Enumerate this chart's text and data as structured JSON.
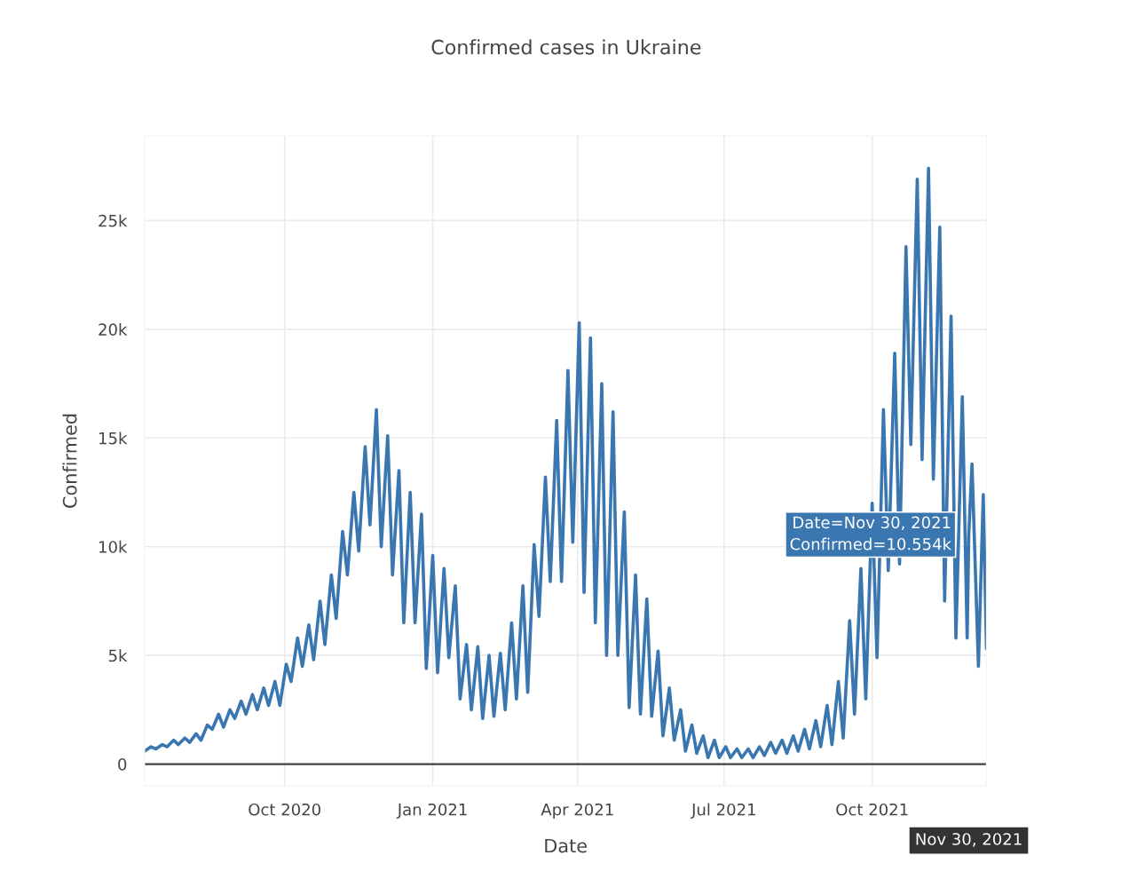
{
  "chart_data": {
    "type": "line",
    "title": "Confirmed cases in Ukraine",
    "xlabel": "Date",
    "ylabel": "Confirmed",
    "x": [
      "2020-07-06",
      "2020-07-10",
      "2020-07-13",
      "2020-07-17",
      "2020-07-20",
      "2020-07-24",
      "2020-07-27",
      "2020-07-31",
      "2020-08-03",
      "2020-08-07",
      "2020-08-10",
      "2020-08-14",
      "2020-08-17",
      "2020-08-21",
      "2020-08-24",
      "2020-08-28",
      "2020-08-31",
      "2020-09-04",
      "2020-09-07",
      "2020-09-11",
      "2020-09-14",
      "2020-09-18",
      "2020-09-21",
      "2020-09-25",
      "2020-09-28",
      "2020-10-02",
      "2020-10-05",
      "2020-10-09",
      "2020-10-12",
      "2020-10-16",
      "2020-10-19",
      "2020-10-23",
      "2020-10-26",
      "2020-10-30",
      "2020-11-02",
      "2020-11-06",
      "2020-11-09",
      "2020-11-13",
      "2020-11-16",
      "2020-11-20",
      "2020-11-23",
      "2020-11-27",
      "2020-11-30",
      "2020-12-04",
      "2020-12-07",
      "2020-12-11",
      "2020-12-14",
      "2020-12-18",
      "2020-12-21",
      "2020-12-25",
      "2020-12-28",
      "2021-01-01",
      "2021-01-04",
      "2021-01-08",
      "2021-01-11",
      "2021-01-15",
      "2021-01-18",
      "2021-01-22",
      "2021-01-25",
      "2021-01-29",
      "2021-02-01",
      "2021-02-05",
      "2021-02-08",
      "2021-02-12",
      "2021-02-15",
      "2021-02-19",
      "2021-02-22",
      "2021-02-26",
      "2021-03-01",
      "2021-03-05",
      "2021-03-08",
      "2021-03-12",
      "2021-03-15",
      "2021-03-19",
      "2021-03-22",
      "2021-03-26",
      "2021-03-29",
      "2021-04-02",
      "2021-04-05",
      "2021-04-09",
      "2021-04-12",
      "2021-04-16",
      "2021-04-19",
      "2021-04-23",
      "2021-04-26",
      "2021-04-30",
      "2021-05-03",
      "2021-05-07",
      "2021-05-10",
      "2021-05-14",
      "2021-05-17",
      "2021-05-21",
      "2021-05-24",
      "2021-05-28",
      "2021-05-31",
      "2021-06-04",
      "2021-06-07",
      "2021-06-11",
      "2021-06-14",
      "2021-06-18",
      "2021-06-21",
      "2021-06-25",
      "2021-06-28",
      "2021-07-02",
      "2021-07-05",
      "2021-07-09",
      "2021-07-12",
      "2021-07-16",
      "2021-07-19",
      "2021-07-23",
      "2021-07-26",
      "2021-07-30",
      "2021-08-02",
      "2021-08-06",
      "2021-08-09",
      "2021-08-13",
      "2021-08-16",
      "2021-08-20",
      "2021-08-23",
      "2021-08-27",
      "2021-08-30",
      "2021-09-03",
      "2021-09-06",
      "2021-09-10",
      "2021-09-13",
      "2021-09-17",
      "2021-09-20",
      "2021-09-24",
      "2021-09-27",
      "2021-10-01",
      "2021-10-04",
      "2021-10-08",
      "2021-10-11",
      "2021-10-15",
      "2021-10-18",
      "2021-10-22",
      "2021-10-25",
      "2021-10-29",
      "2021-11-01",
      "2021-11-05",
      "2021-11-08",
      "2021-11-12",
      "2021-11-15",
      "2021-11-19",
      "2021-11-22",
      "2021-11-26",
      "2021-11-29",
      "2021-11-30",
      "2021-12-02",
      "2021-12-06",
      "2021-12-09",
      "2021-12-11"
    ],
    "series": [
      {
        "color": "#3a76b0",
        "values": [
          0.6,
          0.8,
          0.7,
          0.9,
          0.8,
          1.1,
          0.9,
          1.2,
          1.0,
          1.4,
          1.1,
          1.8,
          1.6,
          2.3,
          1.7,
          2.5,
          2.1,
          2.9,
          2.3,
          3.2,
          2.5,
          3.5,
          2.7,
          3.8,
          2.7,
          4.6,
          3.8,
          5.8,
          4.5,
          6.4,
          4.8,
          7.5,
          5.5,
          8.7,
          6.7,
          10.7,
          8.7,
          12.5,
          9.8,
          14.6,
          11.0,
          16.3,
          10.0,
          15.1,
          8.7,
          13.5,
          6.5,
          12.5,
          6.5,
          11.5,
          4.4,
          9.6,
          4.2,
          9.0,
          4.9,
          8.2,
          3.0,
          5.5,
          2.5,
          5.4,
          2.1,
          5.0,
          2.2,
          5.1,
          2.5,
          6.5,
          3.0,
          8.2,
          3.3,
          10.1,
          6.8,
          13.2,
          8.4,
          15.8,
          8.4,
          18.1,
          10.2,
          20.3,
          7.9,
          19.6,
          6.5,
          17.5,
          5.0,
          16.2,
          5.0,
          11.6,
          2.6,
          8.7,
          2.3,
          7.6,
          2.2,
          5.2,
          1.3,
          3.5,
          1.1,
          2.5,
          0.6,
          1.8,
          0.5,
          1.3,
          0.3,
          1.1,
          0.3,
          0.8,
          0.3,
          0.7,
          0.3,
          0.7,
          0.3,
          0.8,
          0.4,
          1.0,
          0.5,
          1.1,
          0.5,
          1.3,
          0.6,
          1.6,
          0.7,
          2.0,
          0.8,
          2.7,
          0.9,
          3.8,
          1.2,
          6.6,
          2.3,
          9.0,
          3.0,
          12.0,
          4.9,
          16.3,
          8.9,
          18.9,
          9.2,
          23.8,
          14.7,
          26.9,
          14.0,
          27.4,
          13.1,
          24.7,
          7.5,
          20.6,
          5.8,
          16.9,
          5.8,
          10.554,
          13.8,
          4.5,
          12.4,
          5.3
        ]
      }
    ],
    "xlim": [
      "2020-07-06",
      "2021-12-11"
    ],
    "xticks": [
      {
        "value": "2020-10-01",
        "label": "Oct 2020"
      },
      {
        "value": "2021-01-01",
        "label": "Jan 2021"
      },
      {
        "value": "2021-04-01",
        "label": "Apr 2021"
      },
      {
        "value": "2021-07-01",
        "label": "Jul 2021"
      },
      {
        "value": "2021-10-01",
        "label": "Oct 2021"
      }
    ],
    "ylim": [
      -1,
      28.9
    ],
    "yticks": [
      0,
      {
        "value": 5,
        "label": "5k"
      },
      {
        "value": 10,
        "label": "10k"
      },
      {
        "value": 15,
        "label": "15k"
      },
      {
        "value": 20,
        "label": "20k"
      },
      {
        "value": 25,
        "label": "25k"
      }
    ],
    "grid": true,
    "line_style": "solid",
    "marker": "none",
    "ref_lines": [
      {
        "axis": "y",
        "value": 0,
        "color": "#444444"
      }
    ],
    "annotations": [
      {
        "text": "Date=Nov 30, 2021\nConfirmed=10.554k",
        "x": "2021-11-30",
        "y": 10.554
      },
      "Nov 30, 2021"
    ]
  }
}
